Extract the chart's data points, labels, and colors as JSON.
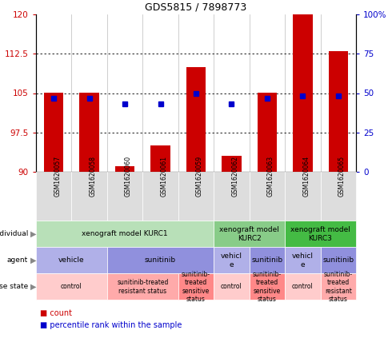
{
  "title": "GDS5815 / 7898773",
  "samples": [
    "GSM1620057",
    "GSM1620058",
    "GSM1620060",
    "GSM1620061",
    "GSM1620059",
    "GSM1620062",
    "GSM1620063",
    "GSM1620064",
    "GSM1620065"
  ],
  "bar_tops": [
    105,
    105,
    91,
    95,
    110,
    93,
    105,
    120,
    113
  ],
  "bar_bottom": 90,
  "blue_y": [
    104,
    104,
    103,
    103,
    105,
    103,
    104,
    104.5,
    104.5
  ],
  "ylim": [
    90,
    120
  ],
  "yticks_left": [
    90,
    97.5,
    105,
    112.5,
    120
  ],
  "yticks_right_labels": [
    "0",
    "25",
    "50",
    "75",
    "100%"
  ],
  "bar_color": "#cc0000",
  "dot_color": "#0000cc",
  "row_labels": [
    "individual",
    "agent",
    "disease state"
  ],
  "individual_groups": [
    {
      "label": "xenograft model KURC1",
      "start": 0,
      "end": 5,
      "color": "#b8e0b8"
    },
    {
      "label": "xenograft model\nKURC2",
      "start": 5,
      "end": 7,
      "color": "#88cc88"
    },
    {
      "label": "xenograft model\nKURC3",
      "start": 7,
      "end": 9,
      "color": "#44bb44"
    }
  ],
  "agent_groups": [
    {
      "label": "vehicle",
      "start": 0,
      "end": 2,
      "color": "#b0b0e8"
    },
    {
      "label": "sunitinib",
      "start": 2,
      "end": 5,
      "color": "#9090dd"
    },
    {
      "label": "vehicl\ne",
      "start": 5,
      "end": 6,
      "color": "#b0b0e8"
    },
    {
      "label": "sunitinib",
      "start": 6,
      "end": 7,
      "color": "#9090dd"
    },
    {
      "label": "vehicl\ne",
      "start": 7,
      "end": 8,
      "color": "#b0b0e8"
    },
    {
      "label": "sunitinib",
      "start": 8,
      "end": 9,
      "color": "#9090dd"
    }
  ],
  "disease_groups": [
    {
      "label": "control",
      "start": 0,
      "end": 2,
      "color": "#ffcccc"
    },
    {
      "label": "sunitinib-treated\nresistant status",
      "start": 2,
      "end": 4,
      "color": "#ffaaaa"
    },
    {
      "label": "sunitinib-\ntreated\nsensitive\nstatus",
      "start": 4,
      "end": 5,
      "color": "#ff8888"
    },
    {
      "label": "control",
      "start": 5,
      "end": 6,
      "color": "#ffcccc"
    },
    {
      "label": "sunitinib-\ntreated\nsensitive\nstatus",
      "start": 6,
      "end": 7,
      "color": "#ff8888"
    },
    {
      "label": "control",
      "start": 7,
      "end": 8,
      "color": "#ffcccc"
    },
    {
      "label": "sunitinib-\ntreated\nresistant\nstatus",
      "start": 8,
      "end": 9,
      "color": "#ffaaaa"
    }
  ],
  "legend_items": [
    {
      "label": "count",
      "color": "#cc0000"
    },
    {
      "label": "percentile rank within the sample",
      "color": "#0000cc"
    }
  ]
}
